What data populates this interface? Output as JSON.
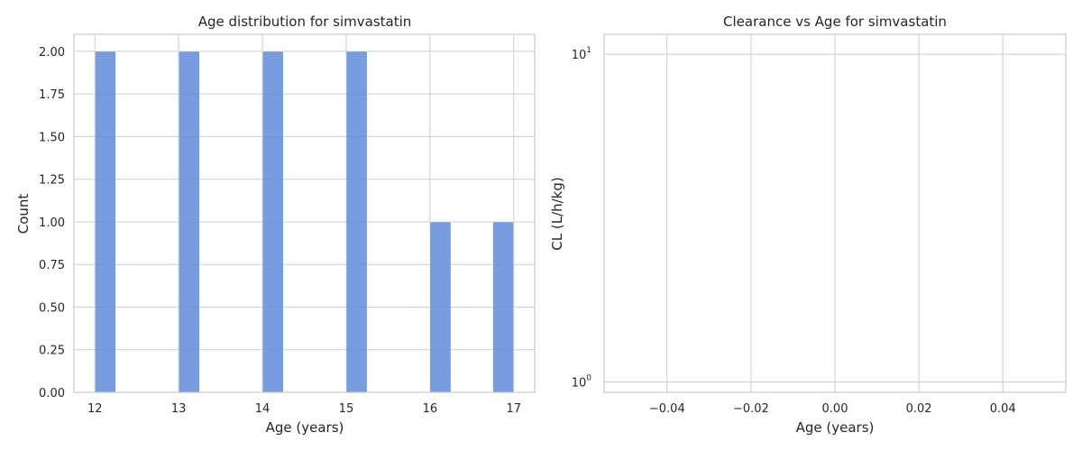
{
  "chart_data": [
    {
      "type": "bar",
      "title": "Age distribution for simvastatin",
      "xlabel": "Age (years)",
      "ylabel": "Count",
      "xlim": [
        11.75,
        17.25
      ],
      "ylim": [
        0,
        2.1
      ],
      "xticks": [
        12,
        13,
        14,
        15,
        16,
        17
      ],
      "xtick_labels": [
        "12",
        "13",
        "14",
        "15",
        "16",
        "17"
      ],
      "yticks": [
        0,
        0.25,
        0.5,
        0.75,
        1.0,
        1.25,
        1.5,
        1.75,
        2.0
      ],
      "ytick_labels": [
        "0.00",
        "0.25",
        "0.50",
        "0.75",
        "1.00",
        "1.25",
        "1.50",
        "1.75",
        "2.00"
      ],
      "bin_width": 0.25,
      "bins": [
        {
          "x_start": 12.0,
          "x_end": 12.25,
          "count": 2
        },
        {
          "x_start": 13.0,
          "x_end": 13.25,
          "count": 2
        },
        {
          "x_start": 14.0,
          "x_end": 14.25,
          "count": 2
        },
        {
          "x_start": 15.0,
          "x_end": 15.25,
          "count": 2
        },
        {
          "x_start": 16.0,
          "x_end": 16.25,
          "count": 1
        },
        {
          "x_start": 16.75,
          "x_end": 17.0,
          "count": 1
        }
      ],
      "bar_color": "#5f8cdb",
      "grid": true
    },
    {
      "type": "scatter",
      "title": "Clearance vs Age for simvastatin",
      "xlabel": "Age (years)",
      "ylabel": "CL (L/h/kg)",
      "xlim": [
        -0.055,
        0.055
      ],
      "ylim": [
        0.93,
        11.5
      ],
      "yscale": "log",
      "xticks": [
        -0.04,
        -0.02,
        0.0,
        0.02,
        0.04
      ],
      "xtick_labels": [
        "−0.04",
        "−0.02",
        "0.00",
        "0.02",
        "0.04"
      ],
      "yticks": [
        {
          "value": 1,
          "base": "10",
          "exp": "0"
        },
        {
          "value": 10,
          "base": "10",
          "exp": "1"
        }
      ],
      "points": [],
      "grid": true
    }
  ]
}
